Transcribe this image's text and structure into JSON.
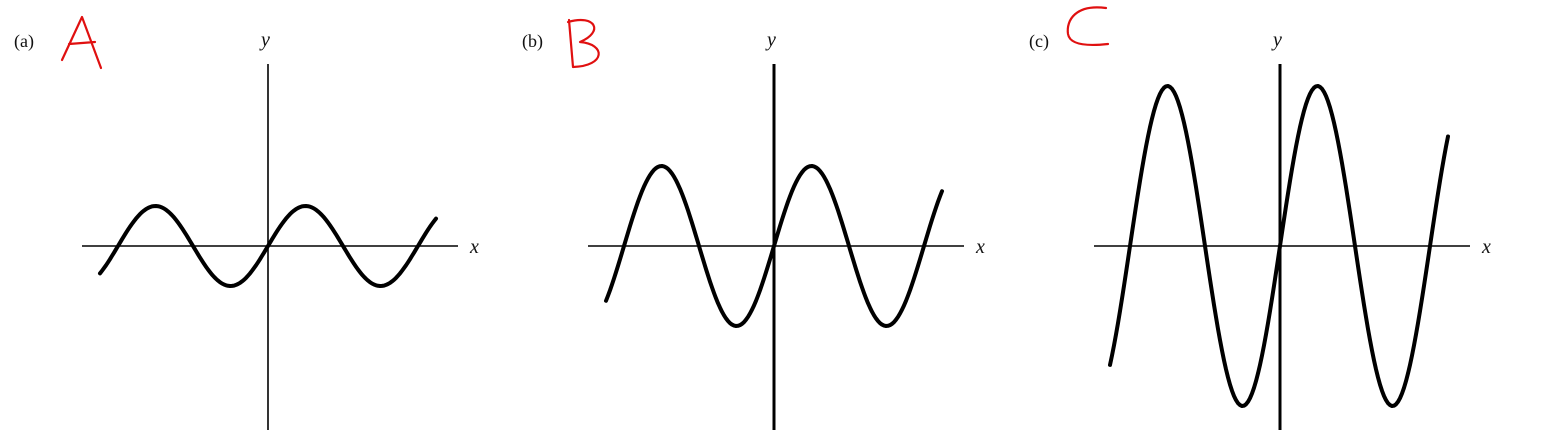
{
  "figure": {
    "panels": [
      {
        "label": "(a)",
        "handwritten_mark": "A",
        "x_axis_label": "x",
        "y_axis_label": "y",
        "amplitude": 1,
        "cycles_shown": 2
      },
      {
        "label": "(b)",
        "handwritten_mark": "B",
        "x_axis_label": "x",
        "y_axis_label": "y",
        "amplitude": 2,
        "cycles_shown": 2
      },
      {
        "label": "(c)",
        "handwritten_mark": "C",
        "x_axis_label": "x",
        "y_axis_label": "y",
        "amplitude": 4,
        "cycles_shown": 2
      }
    ],
    "colors": {
      "curve": "#000000",
      "axes": "#000000",
      "handwriting": "#e01010",
      "background": "#ffffff"
    }
  }
}
